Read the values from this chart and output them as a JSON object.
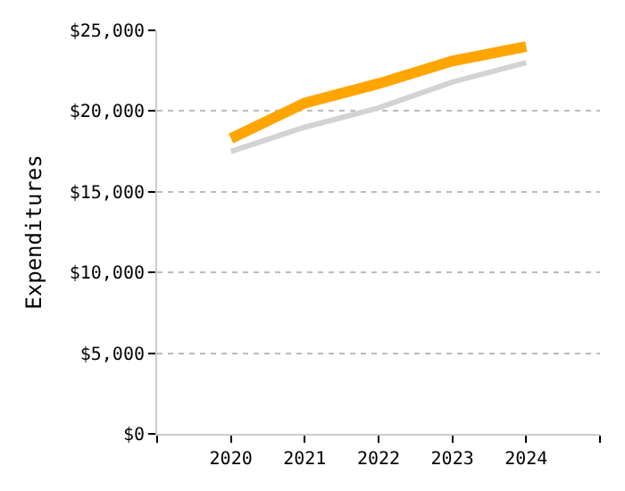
{
  "chart_data": {
    "type": "line",
    "ylabel": "Expenditures",
    "x": [
      2020,
      2021,
      2022,
      2023,
      2024
    ],
    "series": [
      {
        "color": "#d3d3d3",
        "values": [
          17500,
          19000,
          20200,
          21800,
          23000
        ]
      },
      {
        "color": "#ffa500",
        "values": [
          18300,
          20500,
          21700,
          23100,
          24000
        ]
      }
    ],
    "xlim": [
      2019,
      2025
    ],
    "xticks": [
      {
        "value": 2019,
        "label": null
      },
      2020,
      2021,
      2022,
      2023,
      2024,
      {
        "value": 2025,
        "label": null
      }
    ],
    "ylim": [
      0,
      25000
    ],
    "yticks": [
      {
        "value": 0,
        "label": "$0"
      },
      {
        "value": 5000,
        "label": "$5,000"
      },
      {
        "value": 10000,
        "label": "$10,000"
      },
      {
        "value": 15000,
        "label": "$15,000"
      },
      {
        "value": 20000,
        "label": "$20,000"
      },
      {
        "value": 25000,
        "label": "$25,000"
      }
    ],
    "grid": "y",
    "legend": false,
    "marker": "none",
    "line_style": "solid"
  }
}
